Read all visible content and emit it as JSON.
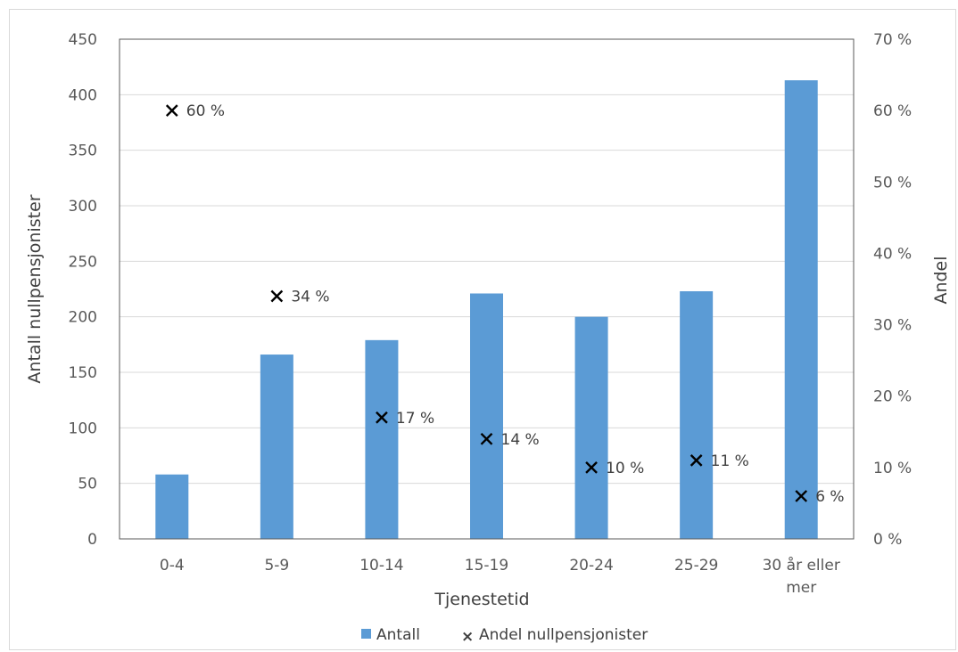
{
  "chart_data": {
    "type": "bar",
    "categories": [
      "0-4",
      "5-9",
      "10-14",
      "15-19",
      "20-24",
      "25-29",
      "30 år eller mer"
    ],
    "category_lines": [
      [
        "0-4"
      ],
      [
        "5-9"
      ],
      [
        "10-14"
      ],
      [
        "15-19"
      ],
      [
        "20-24"
      ],
      [
        "25-29"
      ],
      [
        "30 år eller",
        "mer"
      ]
    ],
    "series": [
      {
        "name": "Antall",
        "type": "bar",
        "axis": "left",
        "color": "#5b9bd5",
        "values": [
          58,
          166,
          179,
          221,
          200,
          223,
          413
        ]
      },
      {
        "name": "Andel nullpensjonister",
        "type": "scatter",
        "axis": "right",
        "marker": "x",
        "color": "#000000",
        "values": [
          60,
          34,
          17,
          14,
          10,
          11,
          6
        ],
        "labels": [
          "60 %",
          "34 %",
          "17 %",
          "14 %",
          "10 %",
          "11 %",
          "6 %"
        ]
      }
    ],
    "xlabel": "Tjenestetid",
    "ylabel": "Antall nullpensjonister",
    "y2label": "Andel",
    "ylim": [
      0,
      450
    ],
    "yticks": [
      0,
      50,
      100,
      150,
      200,
      250,
      300,
      350,
      400,
      450
    ],
    "y2lim": [
      0,
      70
    ],
    "y2ticks": [
      "0 %",
      "10 %",
      "20 %",
      "30 %",
      "40 %",
      "50 %",
      "60 %",
      "70 %"
    ],
    "grid": true,
    "legend_position": "bottom"
  }
}
